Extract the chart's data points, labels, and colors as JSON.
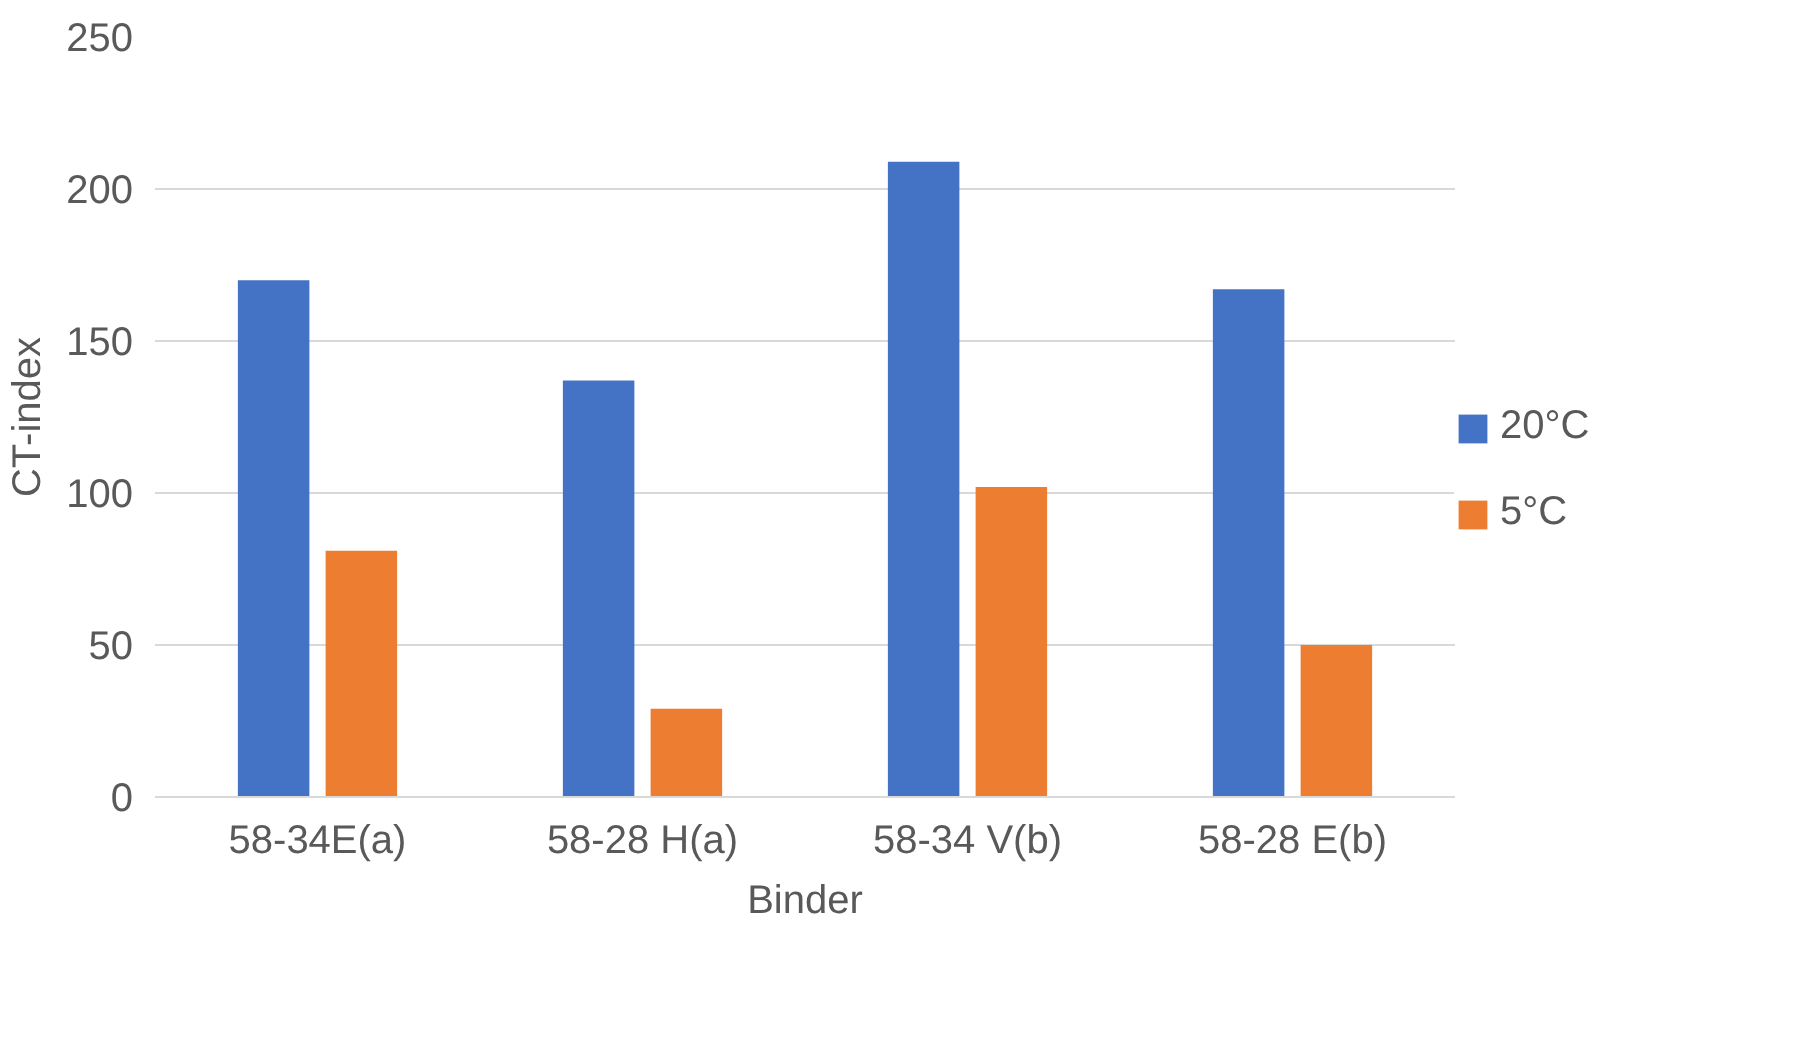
{
  "chart_data": {
    "type": "bar",
    "xlabel": "Binder",
    "ylabel": "CT-index",
    "categories": [
      "58-34E(a)",
      "58-28 H(a)",
      "58-34 V(b)",
      "58-28 E(b)"
    ],
    "series": [
      {
        "name": "20°C",
        "color": "#4472c4",
        "values": [
          170,
          137,
          209,
          167
        ]
      },
      {
        "name": "5°C",
        "color": "#ed7d31",
        "values": [
          81,
          29,
          102,
          50
        ]
      }
    ],
    "ylim": [
      0,
      250
    ],
    "yticks": [
      0,
      50,
      100,
      150,
      200,
      250
    ],
    "grid": "y",
    "legend": "right"
  }
}
